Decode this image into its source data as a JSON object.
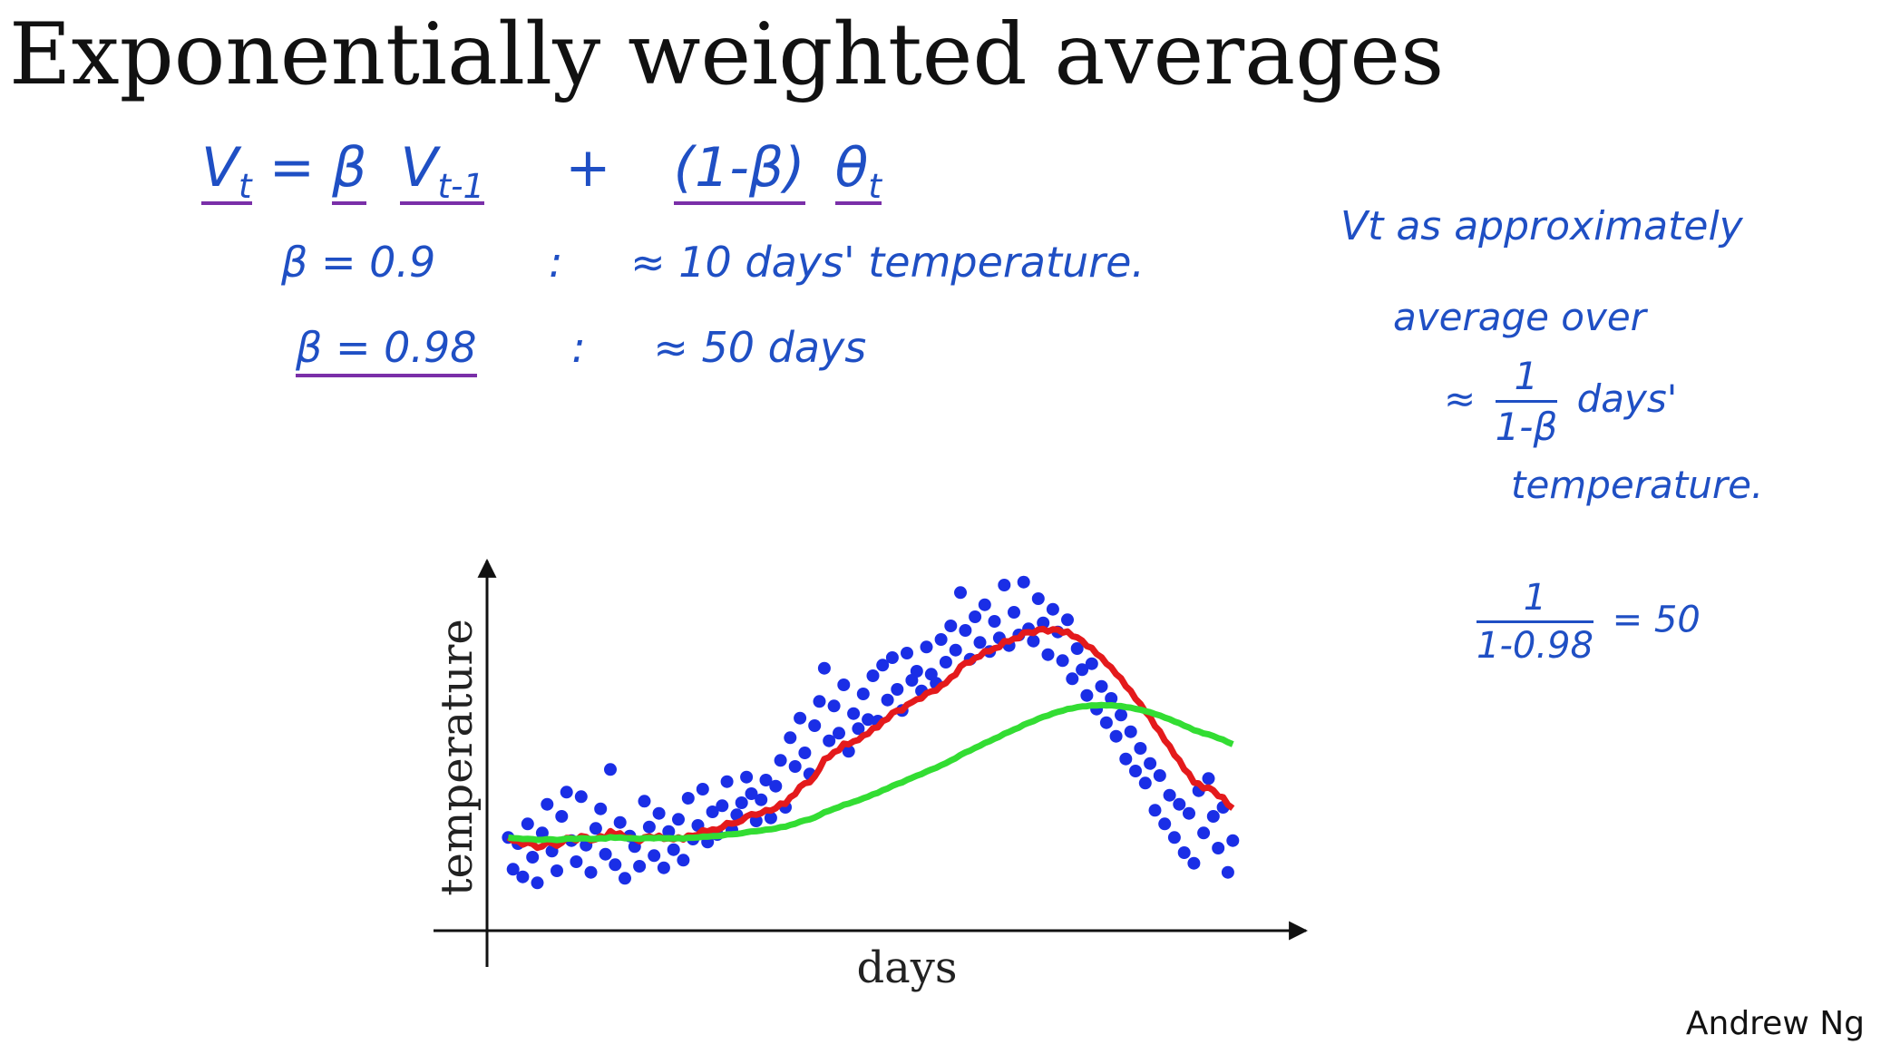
{
  "slide": {
    "title": "Exponentially weighted averages",
    "author": "Andrew Ng"
  },
  "notes": {
    "formula": {
      "lhs": "V",
      "lhs_sub": "t",
      "eq": "=",
      "beta": "β",
      "v_prev": "V",
      "v_prev_sub": "t-1",
      "plus": "+",
      "one_minus_beta": "(1-β)",
      "theta": "θ",
      "theta_sub": "t"
    },
    "line1": {
      "left": "β = 0.9",
      "colon": ":",
      "right": "≈ 10 days' temperature."
    },
    "line2": {
      "left": "β = 0.98",
      "colon": ":",
      "right": "≈ 50 days"
    },
    "side": {
      "line1": "Vt as approximately",
      "line2": "average over",
      "approx": "≈",
      "frac_num": "1",
      "frac_den": "1-β",
      "days": "days'",
      "temperature": "temperature.",
      "calc_num": "1",
      "calc_den": "1-0.98",
      "calc_result": "= 50"
    },
    "ink_color": "#1f4fc4",
    "underline_color": "#7a2fa8"
  },
  "chart_data": {
    "type": "scatter",
    "xlabel": "days",
    "ylabel": "temperature",
    "points": [
      [
        1,
        5.2
      ],
      [
        2,
        3.1
      ],
      [
        3,
        4.8
      ],
      [
        4,
        2.6
      ],
      [
        5,
        6.1
      ],
      [
        6,
        3.9
      ],
      [
        7,
        2.2
      ],
      [
        8,
        5.5
      ],
      [
        9,
        7.4
      ],
      [
        10,
        4.3
      ],
      [
        11,
        3.0
      ],
      [
        12,
        6.6
      ],
      [
        13,
        8.2
      ],
      [
        14,
        5.0
      ],
      [
        15,
        3.6
      ],
      [
        16,
        7.9
      ],
      [
        17,
        4.7
      ],
      [
        18,
        2.9
      ],
      [
        19,
        5.8
      ],
      [
        20,
        7.1
      ],
      [
        21,
        4.1
      ],
      [
        22,
        9.7
      ],
      [
        23,
        3.4
      ],
      [
        24,
        6.2
      ],
      [
        25,
        2.5
      ],
      [
        26,
        5.3
      ],
      [
        27,
        4.6
      ],
      [
        28,
        3.3
      ],
      [
        29,
        7.6
      ],
      [
        30,
        5.9
      ],
      [
        31,
        4.0
      ],
      [
        32,
        6.8
      ],
      [
        33,
        3.2
      ],
      [
        34,
        5.6
      ],
      [
        35,
        4.4
      ],
      [
        36,
        6.4
      ],
      [
        37,
        3.7
      ],
      [
        38,
        7.8
      ],
      [
        39,
        5.1
      ],
      [
        40,
        6.0
      ],
      [
        41,
        8.4
      ],
      [
        42,
        4.9
      ],
      [
        43,
        6.9
      ],
      [
        44,
        5.4
      ],
      [
        45,
        7.3
      ],
      [
        46,
        8.9
      ],
      [
        47,
        5.7
      ],
      [
        48,
        6.7
      ],
      [
        49,
        7.5
      ],
      [
        50,
        9.2
      ],
      [
        51,
        8.1
      ],
      [
        52,
        6.3
      ],
      [
        53,
        7.7
      ],
      [
        54,
        9.0
      ],
      [
        55,
        6.5
      ],
      [
        56,
        8.6
      ],
      [
        57,
        10.3
      ],
      [
        58,
        7.2
      ],
      [
        59,
        11.8
      ],
      [
        60,
        9.9
      ],
      [
        61,
        13.1
      ],
      [
        62,
        10.8
      ],
      [
        63,
        9.4
      ],
      [
        64,
        12.6
      ],
      [
        65,
        14.2
      ],
      [
        66,
        16.4
      ],
      [
        67,
        11.6
      ],
      [
        68,
        13.9
      ],
      [
        69,
        12.1
      ],
      [
        70,
        15.3
      ],
      [
        71,
        10.9
      ],
      [
        72,
        13.4
      ],
      [
        73,
        12.4
      ],
      [
        74,
        14.7
      ],
      [
        75,
        13.0
      ],
      [
        76,
        15.9
      ],
      [
        77,
        12.9
      ],
      [
        78,
        16.6
      ],
      [
        79,
        14.3
      ],
      [
        80,
        17.1
      ],
      [
        81,
        15.0
      ],
      [
        82,
        13.6
      ],
      [
        83,
        17.4
      ],
      [
        84,
        15.6
      ],
      [
        85,
        16.2
      ],
      [
        86,
        14.9
      ],
      [
        87,
        17.8
      ],
      [
        88,
        16.0
      ],
      [
        89,
        15.4
      ],
      [
        90,
        18.3
      ],
      [
        91,
        16.8
      ],
      [
        92,
        19.2
      ],
      [
        93,
        17.6
      ],
      [
        94,
        21.4
      ],
      [
        95,
        18.9
      ],
      [
        96,
        17.0
      ],
      [
        97,
        19.8
      ],
      [
        98,
        18.1
      ],
      [
        99,
        20.6
      ],
      [
        100,
        17.5
      ],
      [
        101,
        19.5
      ],
      [
        102,
        18.4
      ],
      [
        103,
        21.9
      ],
      [
        104,
        17.9
      ],
      [
        105,
        20.1
      ],
      [
        106,
        18.6
      ],
      [
        107,
        22.1
      ],
      [
        108,
        19.0
      ],
      [
        109,
        18.2
      ],
      [
        110,
        21.0
      ],
      [
        111,
        19.4
      ],
      [
        112,
        17.3
      ],
      [
        113,
        20.3
      ],
      [
        114,
        18.8
      ],
      [
        115,
        16.9
      ],
      [
        116,
        19.6
      ],
      [
        117,
        15.7
      ],
      [
        118,
        17.7
      ],
      [
        119,
        16.3
      ],
      [
        120,
        14.6
      ],
      [
        121,
        16.7
      ],
      [
        122,
        13.7
      ],
      [
        123,
        15.2
      ],
      [
        124,
        12.8
      ],
      [
        125,
        14.4
      ],
      [
        126,
        11.9
      ],
      [
        127,
        13.3
      ],
      [
        128,
        10.4
      ],
      [
        129,
        12.2
      ],
      [
        130,
        9.6
      ],
      [
        131,
        11.1
      ],
      [
        132,
        8.8
      ],
      [
        133,
        10.1
      ],
      [
        134,
        7.0
      ],
      [
        135,
        9.3
      ],
      [
        136,
        6.1
      ],
      [
        137,
        8.0
      ],
      [
        138,
        5.2
      ],
      [
        139,
        7.4
      ],
      [
        140,
        4.2
      ],
      [
        141,
        6.8
      ],
      [
        142,
        3.5
      ],
      [
        143,
        8.3
      ],
      [
        144,
        5.5
      ],
      [
        145,
        9.1
      ],
      [
        146,
        6.6
      ],
      [
        147,
        4.5
      ],
      [
        148,
        7.2
      ],
      [
        149,
        2.9
      ],
      [
        150,
        5.0
      ]
    ],
    "series": [
      {
        "name": "",
        "beta": 0.9,
        "color": "#e41a1c"
      },
      {
        "name": "",
        "beta": 0.98,
        "color": "#33dd33"
      }
    ],
    "xlim": [
      0,
      152
    ],
    "ylim": [
      0,
      24
    ],
    "grid": false,
    "point_color": "#1a2ee6"
  }
}
